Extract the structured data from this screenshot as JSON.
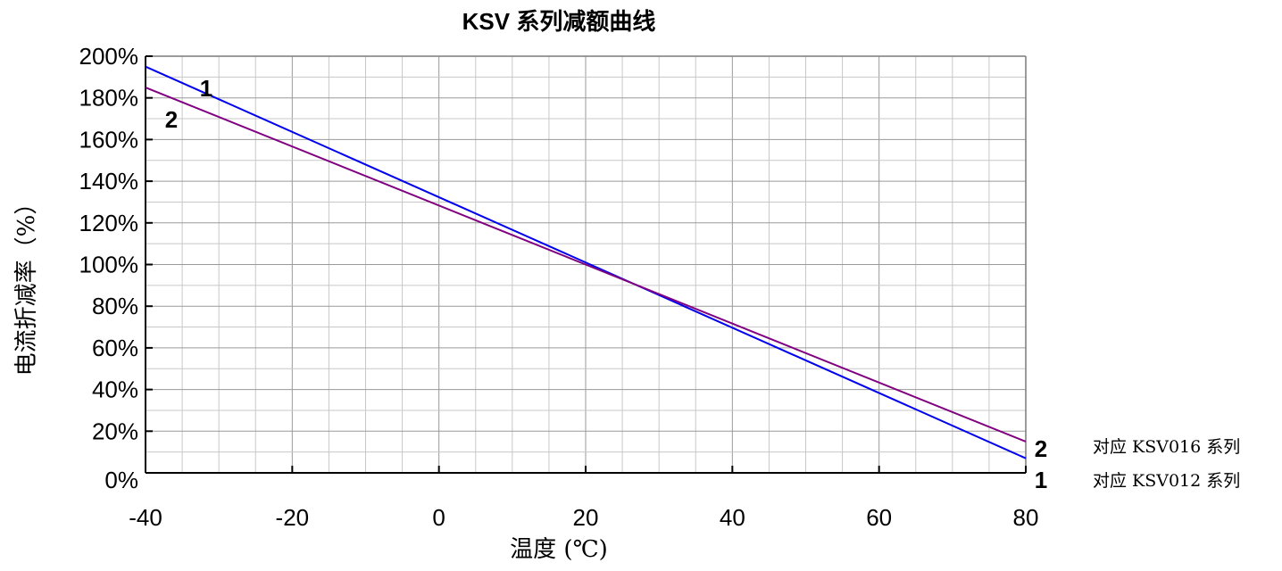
{
  "chart_data": {
    "type": "line",
    "title": "KSV  系列减额曲线",
    "xlabel": "温度 (℃)",
    "ylabel": "电流折减率（%）",
    "xlim": [
      -40,
      80
    ],
    "ylim": [
      0,
      200
    ],
    "x_ticks": [
      "-40",
      "-20",
      "0",
      "20",
      "40",
      "60",
      "80"
    ],
    "y_ticks": [
      "0%",
      "20%",
      "40%",
      "60%",
      "80%",
      "100%",
      "120%",
      "140%",
      "160%",
      "180%",
      "200%"
    ],
    "x_tick_values": [
      -40,
      -20,
      0,
      20,
      40,
      60,
      80
    ],
    "y_tick_values": [
      0,
      20,
      40,
      60,
      80,
      100,
      120,
      140,
      160,
      180,
      200
    ],
    "grid": true,
    "series": [
      {
        "name": "1",
        "color": "#0000ee",
        "x": [
          -40,
          80
        ],
        "y": [
          195,
          7
        ]
      },
      {
        "name": "2",
        "color": "#800080",
        "x": [
          -40,
          80
        ],
        "y": [
          185,
          15
        ]
      }
    ],
    "line_labels_start": [
      "1",
      "2"
    ],
    "line_labels_end": [
      "2",
      "1"
    ],
    "legend": [
      {
        "text": "对应  KSV016  系列"
      },
      {
        "text": "对应  KSV012  系列"
      }
    ]
  }
}
